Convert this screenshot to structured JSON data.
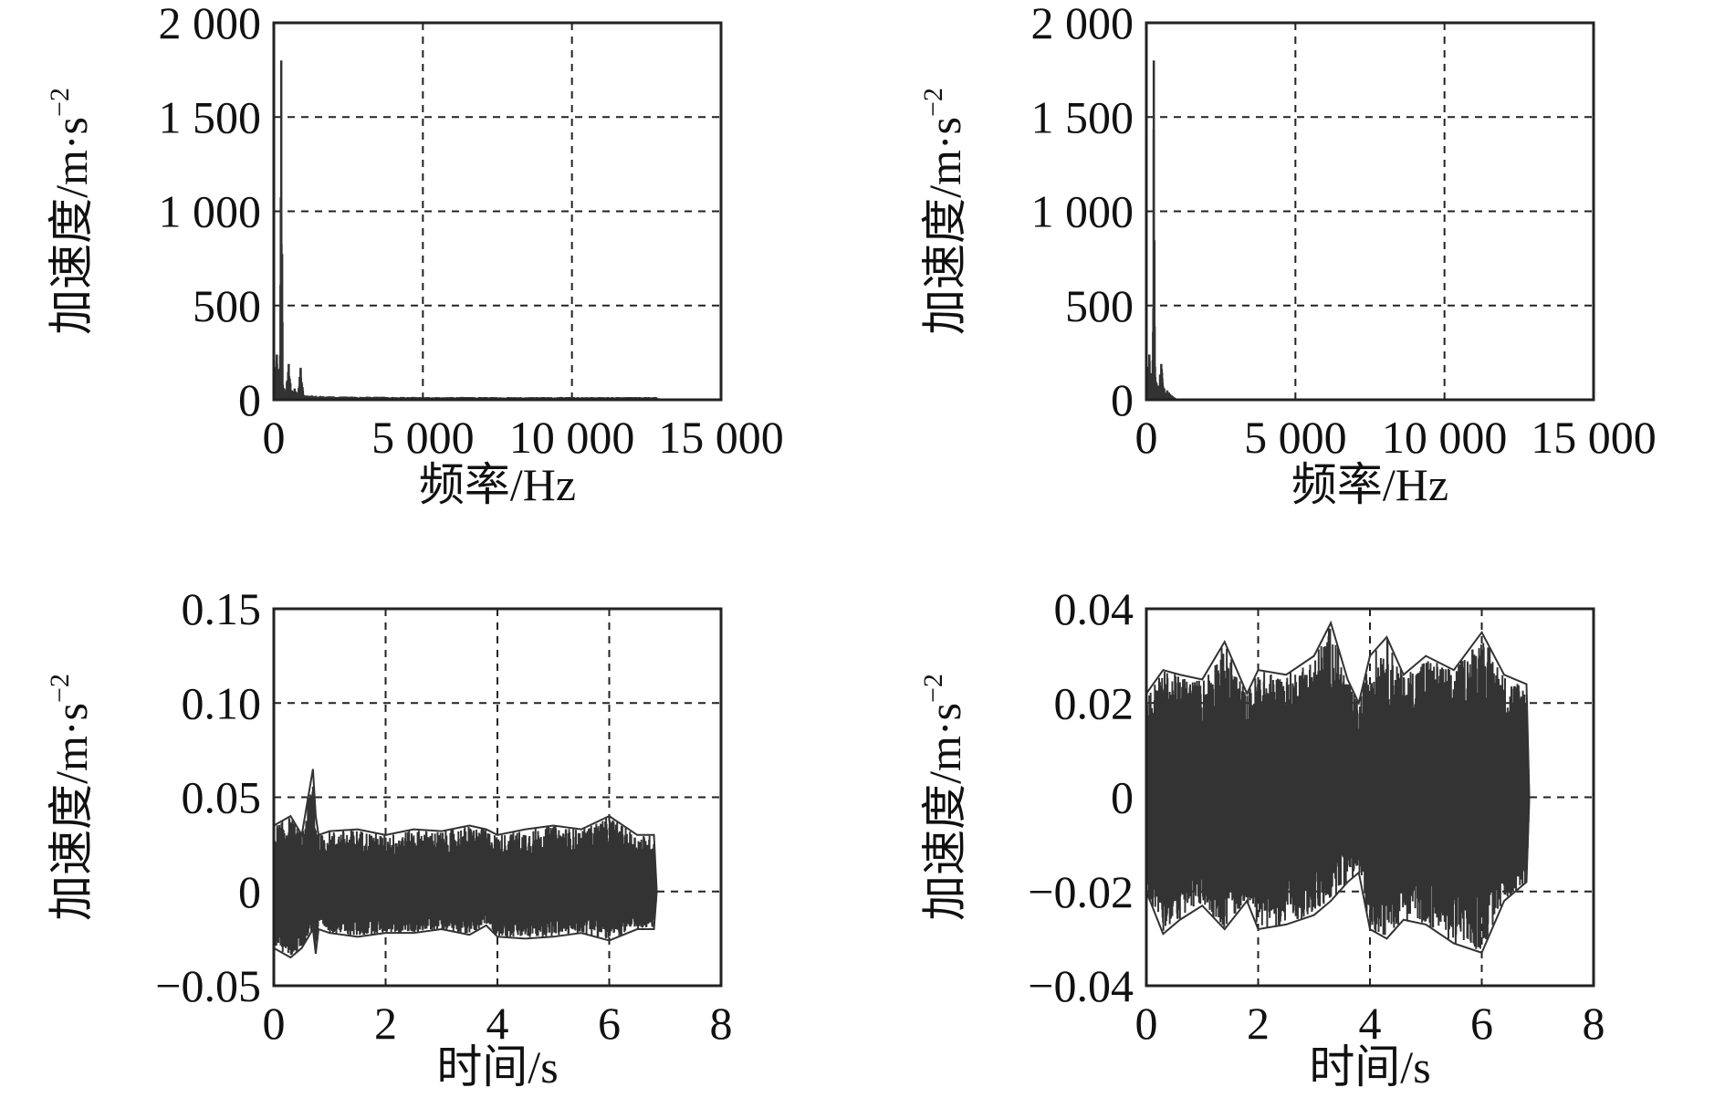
{
  "chart_data": [
    {
      "id": "top-left",
      "type": "line",
      "xlabel": "频率/Hz",
      "ylabel": "加速度/m·s",
      "ylabel_sup": "−2",
      "xlim": [
        0,
        15000
      ],
      "ylim": [
        0,
        2000
      ],
      "xticks": [
        0,
        5000,
        10000,
        15000
      ],
      "xtick_labels": [
        "0",
        "5 000",
        "10 000",
        "15 000"
      ],
      "yticks": [
        0,
        500,
        1000,
        1500,
        2000
      ],
      "ytick_labels": [
        "0",
        "500",
        "1 000",
        "1 500",
        "2 000"
      ],
      "grid": true,
      "series": [
        {
          "kind": "spectrum",
          "x": [
            0,
            100,
            200,
            250,
            300,
            350,
            400,
            500,
            600,
            700,
            800,
            900,
            1000,
            2000,
            5000,
            10000,
            12800,
            13000
          ],
          "y": [
            30,
            240,
            60,
            1800,
            80,
            60,
            40,
            190,
            50,
            60,
            30,
            170,
            25,
            18,
            15,
            15,
            15,
            0
          ]
        }
      ]
    },
    {
      "id": "top-right",
      "type": "line",
      "xlabel": "频率/Hz",
      "ylabel": "加速度/m·s",
      "ylabel_sup": "−2",
      "xlim": [
        0,
        15000
      ],
      "ylim": [
        0,
        2000
      ],
      "xticks": [
        0,
        5000,
        10000,
        15000
      ],
      "xtick_labels": [
        "0",
        "5 000",
        "10 000",
        "15 000"
      ],
      "yticks": [
        0,
        500,
        1000,
        1500,
        2000
      ],
      "ytick_labels": [
        "0",
        "500",
        "1 000",
        "1 500",
        "2 000"
      ],
      "grid": true,
      "series": [
        {
          "kind": "spectrum",
          "x": [
            0,
            100,
            200,
            250,
            300,
            400,
            500,
            600,
            700,
            800,
            1000,
            2000,
            5000,
            10000,
            15000
          ],
          "y": [
            20,
            240,
            60,
            1800,
            120,
            60,
            190,
            60,
            50,
            30,
            5,
            3,
            3,
            3,
            3
          ]
        }
      ]
    },
    {
      "id": "bottom-left",
      "type": "line",
      "xlabel": "时间/s",
      "ylabel": "加速度/m·s",
      "ylabel_sup": "−2",
      "xlim": [
        0,
        8
      ],
      "ylim": [
        -0.05,
        0.15
      ],
      "xticks": [
        0,
        2,
        4,
        6,
        8
      ],
      "xtick_labels": [
        "0",
        "2",
        "4",
        "6",
        "8"
      ],
      "yticks": [
        -0.05,
        0,
        0.05,
        0.1,
        0.15
      ],
      "ytick_labels": [
        "−0.05",
        "0",
        "0.05",
        "0.10",
        "0.15"
      ],
      "grid": true,
      "series": [
        {
          "kind": "envelope",
          "t": [
            0,
            0.3,
            0.5,
            0.7,
            0.75,
            0.8,
            1.0,
            1.5,
            2.0,
            2.5,
            3.0,
            3.5,
            3.8,
            4.0,
            4.5,
            5.0,
            5.5,
            6.0,
            6.5,
            6.8,
            6.85
          ],
          "upper": [
            0.035,
            0.04,
            0.03,
            0.065,
            0.04,
            0.03,
            0.032,
            0.033,
            0.03,
            0.033,
            0.032,
            0.035,
            0.033,
            0.03,
            0.033,
            0.035,
            0.033,
            0.04,
            0.03,
            0.03,
            0.0
          ],
          "lower": [
            -0.03,
            -0.035,
            -0.03,
            -0.02,
            -0.033,
            -0.02,
            -0.022,
            -0.024,
            -0.022,
            -0.022,
            -0.02,
            -0.023,
            -0.018,
            -0.024,
            -0.025,
            -0.024,
            -0.022,
            -0.026,
            -0.02,
            -0.02,
            0.0
          ]
        }
      ]
    },
    {
      "id": "bottom-right",
      "type": "line",
      "xlabel": "时间/s",
      "ylabel": "加速度/m·s",
      "ylabel_sup": "−2",
      "xlim": [
        0,
        8
      ],
      "ylim": [
        -0.04,
        0.04
      ],
      "xticks": [
        0,
        2,
        4,
        6,
        8
      ],
      "xtick_labels": [
        "0",
        "2",
        "4",
        "6",
        "8"
      ],
      "yticks": [
        -0.04,
        -0.02,
        0,
        0.02,
        0.04
      ],
      "ytick_labels": [
        "−0.04",
        "−0.02",
        "0",
        "0.02",
        "0.04"
      ],
      "grid": true,
      "series": [
        {
          "kind": "envelope",
          "t": [
            0,
            0.3,
            0.6,
            1.0,
            1.4,
            1.8,
            2.0,
            2.5,
            3.0,
            3.3,
            3.6,
            3.8,
            4.0,
            4.3,
            4.6,
            5.0,
            5.5,
            6.0,
            6.4,
            6.8,
            6.85
          ],
          "upper": [
            0.022,
            0.027,
            0.026,
            0.025,
            0.033,
            0.022,
            0.027,
            0.026,
            0.03,
            0.037,
            0.025,
            0.02,
            0.03,
            0.034,
            0.026,
            0.03,
            0.027,
            0.035,
            0.026,
            0.024,
            0.0
          ],
          "lower": [
            -0.02,
            -0.029,
            -0.026,
            -0.023,
            -0.028,
            -0.022,
            -0.028,
            -0.027,
            -0.025,
            -0.022,
            -0.018,
            -0.016,
            -0.028,
            -0.03,
            -0.026,
            -0.027,
            -0.031,
            -0.033,
            -0.022,
            -0.018,
            0.0
          ]
        }
      ]
    }
  ]
}
